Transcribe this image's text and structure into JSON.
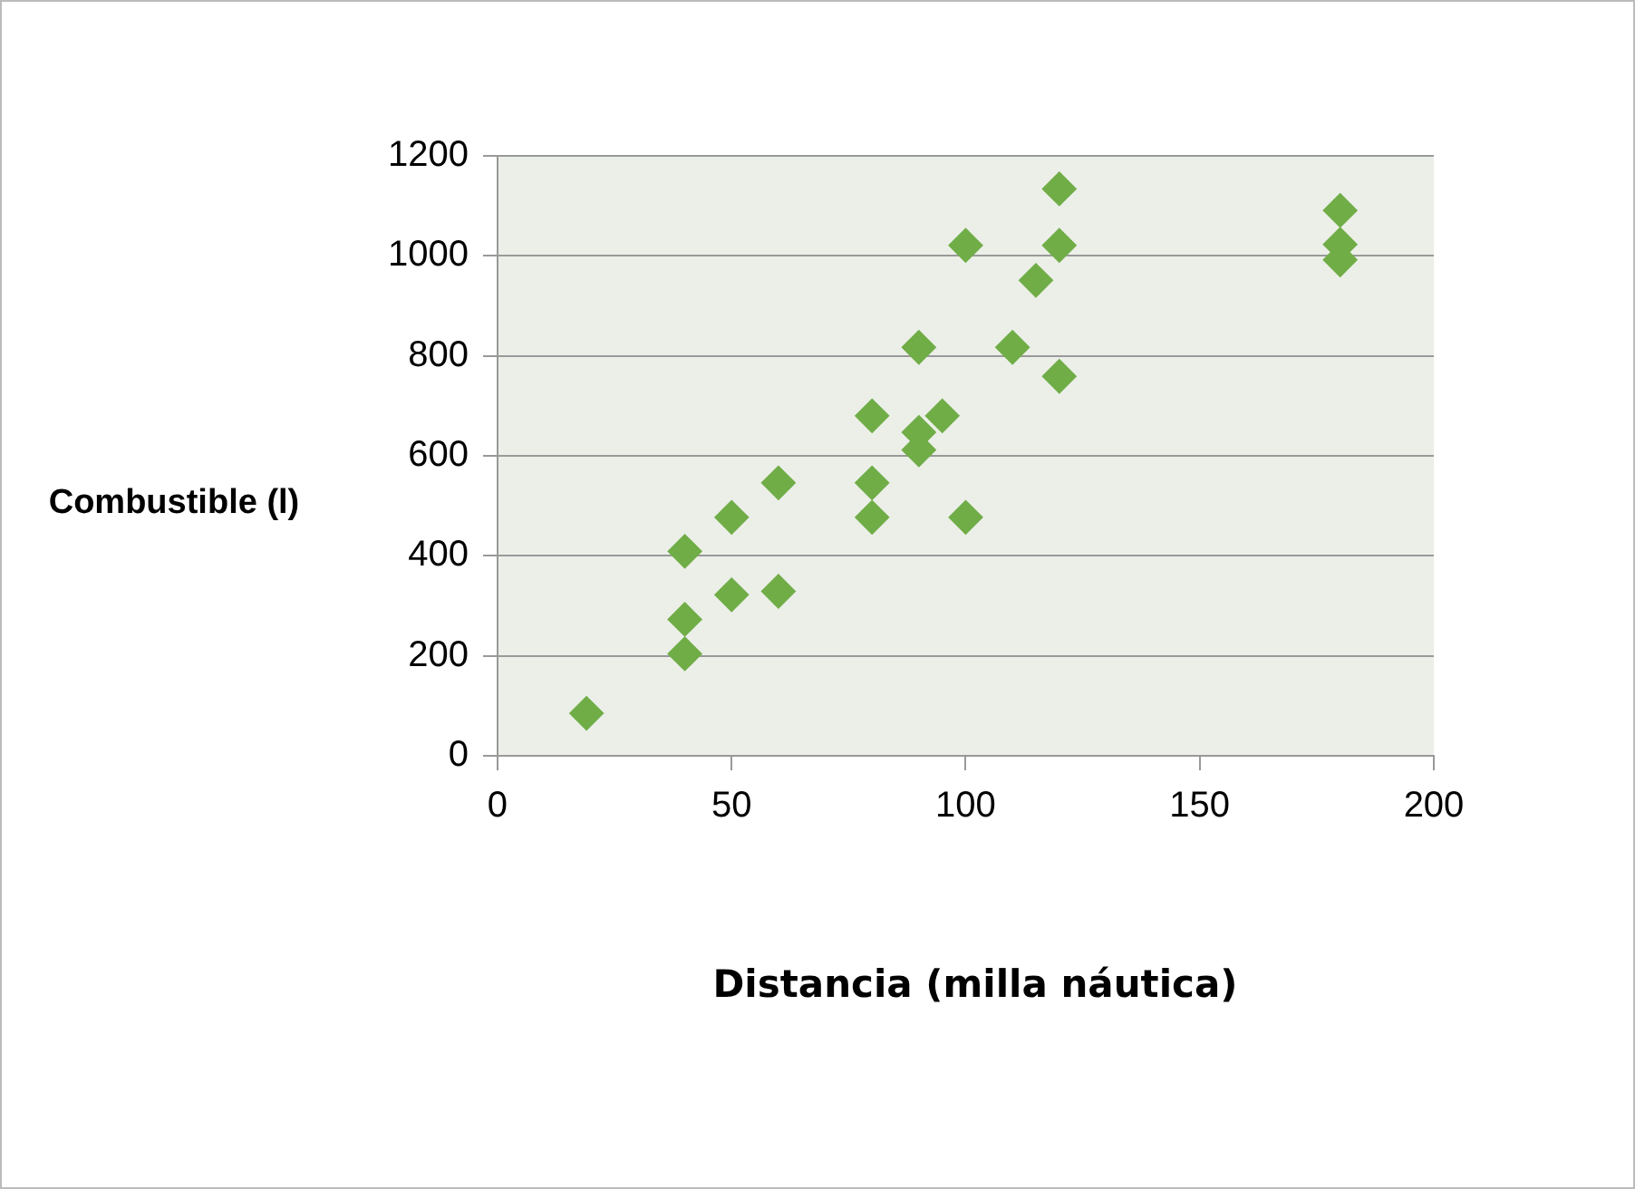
{
  "chart_data": {
    "type": "scatter",
    "xlabel": "Distancia (milla náutica)",
    "ylabel": "Combustible (l)",
    "x": [
      19,
      40,
      40,
      40,
      50,
      50,
      60,
      60,
      80,
      80,
      80,
      90,
      90,
      90,
      95,
      100,
      100,
      110,
      115,
      120,
      120,
      120,
      180,
      180,
      180
    ],
    "series": [
      {
        "color": "#70ad47",
        "values": [
          85,
          409,
          273,
          204,
          477,
          322,
          546,
          329,
          680,
          546,
          477,
          817,
          647,
          612,
          680,
          1021,
          477,
          817,
          951,
          1134,
          1021,
          759,
          1091,
          1023,
          992
        ]
      }
    ],
    "xlim": [
      0,
      200
    ],
    "xticks": [
      0,
      50,
      100,
      150,
      200
    ],
    "ylim": [
      0,
      1200
    ],
    "yticks": [
      0,
      200,
      400,
      600,
      800,
      1000,
      1200
    ],
    "grid": "y",
    "marker": "diamond",
    "legend": false
  }
}
